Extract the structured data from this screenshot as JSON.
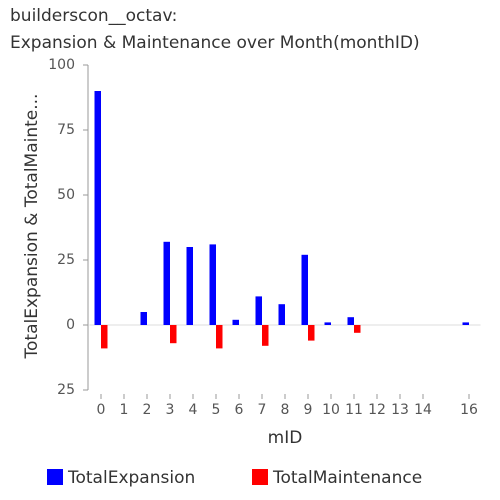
{
  "chart_data": {
    "type": "bar",
    "title": "builderscon__octav:",
    "subtitle": "Expansion & Maintenance over Month(monthID)",
    "x_label": "mID",
    "y_label": "TotalExpansion & TotalMainte...",
    "categories": [
      "0",
      "1",
      "2",
      "3",
      "4",
      "5",
      "6",
      "7",
      "8",
      "9",
      "10",
      "11",
      "12",
      "13",
      "14",
      null,
      "16"
    ],
    "series": [
      {
        "name": "TotalExpansion",
        "color": "#0000ff",
        "values": [
          90,
          0,
          5,
          32,
          30,
          31,
          2,
          11,
          8,
          27,
          1,
          3,
          0,
          0,
          0,
          0,
          1
        ]
      },
      {
        "name": "TotalMaintenance",
        "color": "#ff0000",
        "values": [
          -9,
          0,
          0,
          -7,
          0,
          -9,
          0,
          -8,
          0,
          -6,
          0,
          -3,
          0,
          0,
          0,
          0,
          0
        ]
      }
    ],
    "ylim": [
      -25,
      100
    ],
    "yticks": [
      100,
      75,
      50,
      25,
      0,
      {
        "value": -25,
        "label": "25"
      }
    ],
    "legend": "bottom"
  }
}
